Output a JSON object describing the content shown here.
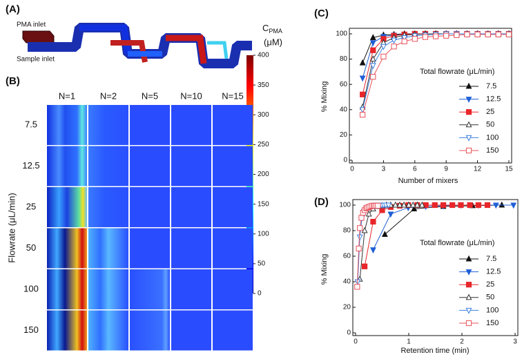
{
  "panel_a": {
    "label": "(A)",
    "inlet_top": "PMA inlet",
    "inlet_bottom": "Sample inlet",
    "colorbar": {
      "title": "C",
      "subscript": "PMA",
      "unit": "(μM)",
      "lim": [
        0,
        400
      ],
      "ticks": [
        0,
        50,
        100,
        150,
        200,
        250,
        300,
        350,
        400
      ]
    }
  },
  "panel_b": {
    "label": "(B)",
    "y_label": "Flowrate (μL/min)",
    "columns": [
      "N=1",
      "N=2",
      "N=5",
      "N=10",
      "N=15"
    ],
    "rows": [
      "7.5",
      "12.5",
      "25",
      "50",
      "100",
      "150"
    ]
  },
  "chart_data": [
    {
      "type": "line",
      "panel": "(C)",
      "x_label": "Number of mixers",
      "y_label": "% Mixing",
      "legend_title": "Total flowrate (μL/min)",
      "x": [
        1,
        2,
        3,
        4,
        5,
        6,
        7,
        8,
        9,
        10,
        11,
        12,
        13,
        14,
        15
      ],
      "xlim": [
        0,
        15
      ],
      "xticks": [
        0,
        3,
        6,
        9,
        12,
        15
      ],
      "ylim": [
        0,
        100
      ],
      "yticks": [
        0,
        20,
        40,
        60,
        80,
        100
      ],
      "series": [
        {
          "name": "7.5",
          "color": "#111111",
          "marker": "triangle-up",
          "filled": true,
          "values": [
            77,
            97,
            99,
            99.5,
            100,
            100,
            100,
            100,
            100,
            100,
            100,
            100,
            100,
            100,
            100
          ]
        },
        {
          "name": "12.5",
          "color": "#1f5fd6",
          "marker": "triangle-down",
          "filled": true,
          "values": [
            65,
            93,
            98,
            99,
            99.5,
            100,
            100,
            100,
            100,
            100,
            100,
            100,
            100,
            100,
            100
          ]
        },
        {
          "name": "25",
          "color": "#e8262a",
          "marker": "square",
          "filled": true,
          "values": [
            52,
            87,
            96,
            98.5,
            99.5,
            100,
            100,
            100,
            100,
            100,
            100,
            100,
            100,
            100,
            100
          ]
        },
        {
          "name": "50",
          "color": "#333333",
          "marker": "triangle-up",
          "filled": false,
          "values": [
            42,
            80,
            93,
            97,
            99,
            99.5,
            100,
            100,
            100,
            100,
            100,
            100,
            100,
            100,
            100
          ]
        },
        {
          "name": "100",
          "color": "#3a7ee0",
          "marker": "triangle-down",
          "filled": false,
          "values": [
            40,
            75,
            90,
            95,
            97,
            98.5,
            99,
            99.5,
            100,
            100,
            100,
            100,
            100,
            100,
            100
          ]
        },
        {
          "name": "150",
          "color": "#e8505a",
          "marker": "square",
          "filled": false,
          "values": [
            36,
            66,
            82,
            90,
            94,
            96,
            97.5,
            98,
            98.5,
            99,
            99.5,
            99.5,
            99.5,
            99.5,
            99.5
          ]
        }
      ]
    },
    {
      "type": "line",
      "panel": "(D)",
      "x_label": "Retention time (min)",
      "y_label": "% Mixing",
      "legend_title": "Total flowrate (μL/min)",
      "xlim": [
        0,
        3
      ],
      "xticks": [
        0,
        1,
        2,
        3
      ],
      "ylim": [
        0,
        100
      ],
      "yticks": [
        0,
        20,
        40,
        60,
        80,
        100
      ],
      "series": [
        {
          "name": "7.5",
          "color": "#111111",
          "marker": "triangle-up",
          "filled": true,
          "x": [
            0.55,
            1.1,
            1.65,
            2.2,
            2.75
          ],
          "values": [
            77,
            97,
            99,
            99.5,
            100
          ]
        },
        {
          "name": "12.5",
          "color": "#1f5fd6",
          "marker": "triangle-down",
          "filled": true,
          "x": [
            0.33,
            0.66,
            0.99,
            1.32,
            1.65,
            1.98,
            2.31,
            2.64,
            2.97
          ],
          "values": [
            65,
            93,
            98,
            99,
            99.5,
            100,
            100,
            100,
            100
          ]
        },
        {
          "name": "25",
          "color": "#e8262a",
          "marker": "square",
          "filled": true,
          "x": [
            0.17,
            0.33,
            0.5,
            0.66,
            0.83,
            0.99,
            1.16,
            1.32,
            1.49,
            1.65,
            1.82,
            1.98,
            2.15,
            2.31,
            2.48
          ],
          "values": [
            52,
            87,
            96,
            98.5,
            99.5,
            100,
            100,
            100,
            100,
            100,
            100,
            100,
            100,
            100,
            100
          ]
        },
        {
          "name": "50",
          "color": "#333333",
          "marker": "triangle-up",
          "filled": false,
          "x": [
            0.08,
            0.17,
            0.25,
            0.33,
            0.42,
            0.5,
            0.58,
            0.66,
            0.75,
            0.83,
            0.91,
            1.0,
            1.08,
            1.16,
            1.25
          ],
          "values": [
            42,
            80,
            93,
            97,
            99,
            99.5,
            100,
            100,
            100,
            100,
            100,
            100,
            100,
            100,
            100
          ]
        },
        {
          "name": "100",
          "color": "#3a7ee0",
          "marker": "triangle-down",
          "filled": false,
          "x": [
            0.04,
            0.08,
            0.12,
            0.16,
            0.21,
            0.25,
            0.29,
            0.33,
            0.37,
            0.41,
            0.45,
            0.49,
            0.53,
            0.57,
            0.62
          ],
          "values": [
            40,
            75,
            90,
            95,
            97,
            98.5,
            99,
            99.5,
            100,
            100,
            100,
            100,
            100,
            100,
            100
          ]
        },
        {
          "name": "150",
          "color": "#e8505a",
          "marker": "square",
          "filled": false,
          "x": [
            0.03,
            0.06,
            0.08,
            0.11,
            0.14,
            0.17,
            0.2,
            0.22,
            0.25,
            0.28,
            0.31,
            0.34,
            0.36,
            0.39,
            0.42
          ],
          "values": [
            36,
            66,
            82,
            90,
            94,
            96,
            97.5,
            98,
            98.5,
            99,
            99.5,
            99.5,
            99.5,
            99.5,
            99.5
          ]
        }
      ]
    }
  ]
}
